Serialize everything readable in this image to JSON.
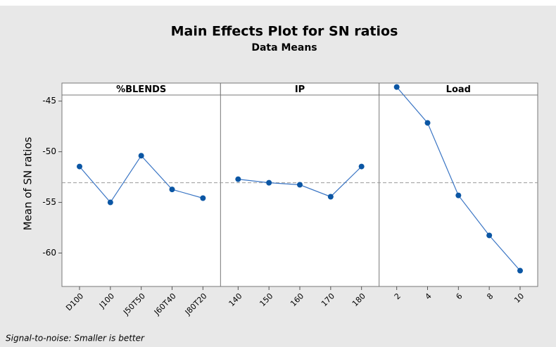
{
  "chart_data": {
    "type": "line",
    "title": "Main Effects Plot for SN ratios",
    "subtitle": "Data Means",
    "y_label": "Mean of SN ratios",
    "footnote": "Signal-to-noise: Smaller is better",
    "color": "#0b56a4",
    "line_color": "#3a75c4",
    "reference_line": -53.06,
    "reference_color": "#999999",
    "ylim": [
      -63.3,
      -44.4
    ],
    "yticks": [
      -45,
      -50,
      -55,
      -60
    ],
    "panels": [
      {
        "title": "%BLENDS",
        "categories": [
          "D100",
          "J100",
          "J50T50",
          "J60T40",
          "J80T20"
        ],
        "values": [
          -51.46,
          -55.0,
          -50.39,
          -53.72,
          -54.58
        ]
      },
      {
        "title": "IP",
        "categories": [
          "140",
          "150",
          "160",
          "170",
          "180"
        ],
        "values": [
          -52.71,
          -53.06,
          -53.26,
          -54.44,
          -51.46
        ]
      },
      {
        "title": "Load",
        "categories": [
          "2",
          "4",
          "6",
          "8",
          "10"
        ],
        "values": [
          -43.61,
          -47.15,
          -54.31,
          -58.26,
          -61.74
        ]
      }
    ]
  }
}
